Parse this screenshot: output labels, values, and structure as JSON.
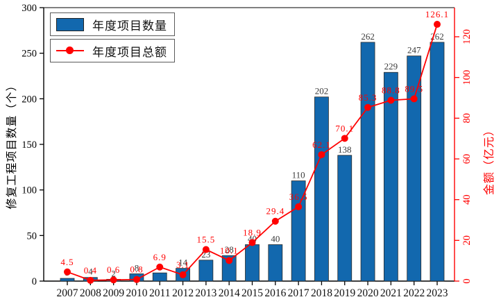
{
  "chart_data": {
    "type": "combo",
    "categories": [
      "2007",
      "2008",
      "2009",
      "2010",
      "2011",
      "2012",
      "2013",
      "2014",
      "2015",
      "2016",
      "2017",
      "2018",
      "2019",
      "2020",
      "2021",
      "2022",
      "2023"
    ],
    "series": [
      {
        "name": "年度项目数量",
        "type": "bar",
        "axis": "left",
        "color": "#1268ae",
        "values": [
          3,
          4,
          2,
          8,
          9,
          14,
          23,
          28,
          40,
          40,
          110,
          202,
          138,
          262,
          229,
          247,
          262
        ]
      },
      {
        "name": "年度项目总额",
        "type": "line",
        "axis": "right",
        "color": "#ff0000",
        "values": [
          4.5,
          0.4,
          0.6,
          0.8,
          6.9,
          3.1,
          15.5,
          10.1,
          18.9,
          29.4,
          36.5,
          62.1,
          70.1,
          85.3,
          88.8,
          89.5,
          126.1
        ]
      }
    ],
    "left_axis": {
      "label": "修复工程项目数量（个）",
      "min": 0,
      "max": 300,
      "ticks": [
        0,
        50,
        100,
        150,
        200,
        250,
        300
      ],
      "color": "#000000"
    },
    "right_axis": {
      "label": "金额（亿元）",
      "min": 0,
      "max": 134.3,
      "ticks": [
        0,
        20,
        40,
        60,
        80,
        100,
        120
      ],
      "color": "#ff0000"
    },
    "legend": [
      {
        "label": "年度项目数量",
        "marker": "bar-swatch"
      },
      {
        "label": "年度项目总额",
        "marker": "line-dot-swatch"
      }
    ],
    "title": "",
    "grid": false,
    "bar_label_color": "#3a3a3a",
    "line_label_color": "#ff0000"
  },
  "colors": {
    "bar": "#1268ae",
    "red": "#ff0000",
    "axis": "#000000"
  }
}
